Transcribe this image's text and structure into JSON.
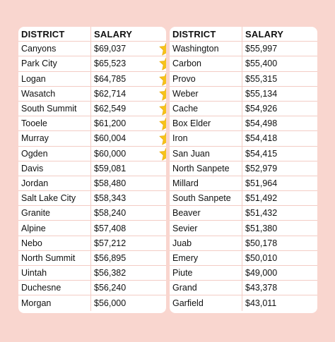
{
  "left_table": {
    "headers": {
      "district": "DISTRICT",
      "salary": "SALARY"
    },
    "rows": [
      {
        "district": "Canyons",
        "salary": "$69,037",
        "star": true
      },
      {
        "district": "Park City",
        "salary": "$65,523",
        "star": true
      },
      {
        "district": "Logan",
        "salary": "$64,785",
        "star": true
      },
      {
        "district": "Wasatch",
        "salary": "$62,714",
        "star": true
      },
      {
        "district": "South Summit",
        "salary": "$62,549",
        "star": true
      },
      {
        "district": "Tooele",
        "salary": "$61,200",
        "star": true
      },
      {
        "district": "Murray",
        "salary": "$60,004",
        "star": true
      },
      {
        "district": "Ogden",
        "salary": "$60,000",
        "star": true
      },
      {
        "district": "Davis",
        "salary": "$59,081",
        "star": false
      },
      {
        "district": "Jordan",
        "salary": "$58,480",
        "star": false
      },
      {
        "district": "Salt Lake City",
        "salary": "$58,343",
        "star": false
      },
      {
        "district": "Granite",
        "salary": "$58,240",
        "star": false
      },
      {
        "district": "Alpine",
        "salary": "$57,408",
        "star": false
      },
      {
        "district": "Nebo",
        "salary": "$57,212",
        "star": false
      },
      {
        "district": "North Summit",
        "salary": "$56,895",
        "star": false
      },
      {
        "district": "Uintah",
        "salary": "$56,382",
        "star": false
      },
      {
        "district": "Duchesne",
        "salary": "$56,240",
        "star": false
      },
      {
        "district": "Morgan",
        "salary": "$56,000",
        "star": false
      }
    ]
  },
  "right_table": {
    "headers": {
      "district": "DISTRICT",
      "salary": "SALARY"
    },
    "rows": [
      {
        "district": "Washington",
        "salary": "$55,997"
      },
      {
        "district": "Carbon",
        "salary": "$55,400"
      },
      {
        "district": "Provo",
        "salary": "$55,315"
      },
      {
        "district": "Weber",
        "salary": "$55,134"
      },
      {
        "district": "Cache",
        "salary": "$54,926"
      },
      {
        "district": "Box Elder",
        "salary": "$54,498"
      },
      {
        "district": "Iron",
        "salary": "$54,418"
      },
      {
        "district": "San Juan",
        "salary": "$54,415"
      },
      {
        "district": "North Sanpete",
        "salary": "$52,979"
      },
      {
        "district": "Millard",
        "salary": "$51,964"
      },
      {
        "district": "South Sanpete",
        "salary": "$51,492"
      },
      {
        "district": "Beaver",
        "salary": "$51,432"
      },
      {
        "district": "Sevier",
        "salary": "$51,380"
      },
      {
        "district": "Juab",
        "salary": "$50,178"
      },
      {
        "district": "Emery",
        "salary": "$50,010"
      },
      {
        "district": "Piute",
        "salary": "$49,000"
      },
      {
        "district": "Grand",
        "salary": "$43,378"
      },
      {
        "district": "Garfield",
        "salary": "$43,011"
      }
    ]
  },
  "colors": {
    "background": "#f9d6cf",
    "card": "#ffffff",
    "row_divider": "#f3ccc5",
    "star": "#f6c21a"
  },
  "icons": {
    "star": "star-icon"
  }
}
